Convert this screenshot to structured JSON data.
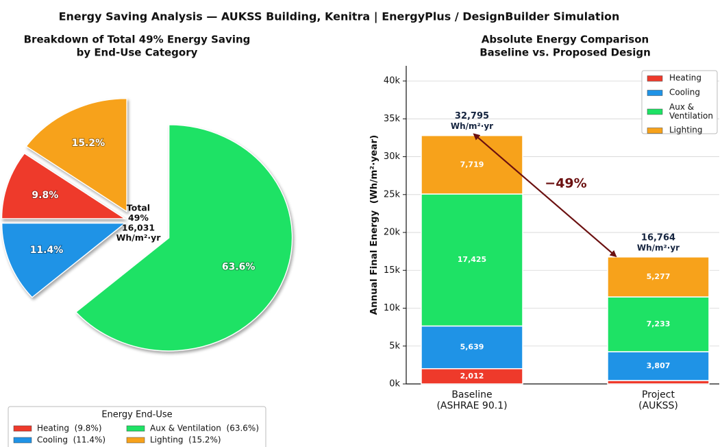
{
  "title": "Energy Saving Analysis — AUKSS Building, Kenitra  |  EnergyPlus / DesignBuilder Simulation",
  "chart_data": [
    {
      "type": "pie",
      "title": [
        "Breakdown of Total 49% Energy Saving",
        "by End-Use Category"
      ],
      "categories": [
        "Heating",
        "Cooling",
        "Aux & Ventilation",
        "Lighting"
      ],
      "values": [
        9.8,
        11.4,
        63.6,
        15.2
      ],
      "value_labels": [
        "9.8%",
        "11.4%",
        "63.6%",
        "15.2%"
      ],
      "colors": [
        "#ee3a2b",
        "#1f93e6",
        "#1ee265",
        "#f7a21b"
      ],
      "center_text": [
        "Total",
        "49%",
        "16,031",
        "Wh/m²·yr"
      ],
      "legend_title": "Energy End-Use",
      "legend_labels": [
        "Heating  (9.8%)",
        "Cooling  (11.4%)",
        "Aux & Ventilation  (63.6%)",
        "Lighting  (15.2%)"
      ],
      "legend": "lower left"
    },
    {
      "type": "stacked_bar",
      "title": [
        "Absolute Energy Comparison",
        "Baseline vs. Proposed Design"
      ],
      "categories": [
        [
          "Baseline",
          "(ASHRAE 90.1)"
        ],
        [
          "Project",
          "(AUKSS)"
        ]
      ],
      "ylabel": "Annual Final Energy  (Wh/m²·year)",
      "series": [
        {
          "name": "Heating",
          "color": "#ee3a2b",
          "values": [
            2012,
            447
          ],
          "value_labels": [
            "2,012",
            null
          ]
        },
        {
          "name": "Cooling",
          "color": "#1f93e6",
          "values": [
            5639,
            3807
          ],
          "value_labels": [
            "5,639",
            "3,807"
          ]
        },
        {
          "name": "Aux & Ventilation",
          "color": "#1ee265",
          "values": [
            17425,
            7233
          ],
          "value_labels": [
            "17,425",
            "7,233"
          ]
        },
        {
          "name": "Lighting",
          "color": "#f7a21b",
          "values": [
            7719,
            5277
          ],
          "value_labels": [
            "7,719",
            "5,277"
          ]
        }
      ],
      "totals": [
        32795,
        16764
      ],
      "total_labels": [
        "32,795",
        "16,764"
      ],
      "total_unit": "Wh/m²·yr",
      "annotation": "−49%",
      "ylim": [
        0,
        42000
      ],
      "yticks": [
        {
          "value": 0,
          "label": "0k"
        },
        {
          "value": 5000,
          "label": "5k"
        },
        {
          "value": 10000,
          "label": "10k"
        },
        {
          "value": 15000,
          "label": "15k"
        },
        {
          "value": 20000,
          "label": "20k"
        },
        {
          "value": 25000,
          "label": "25k"
        },
        {
          "value": 30000,
          "label": "30k"
        },
        {
          "value": 35000,
          "label": "35k"
        },
        {
          "value": 40000,
          "label": "40k"
        }
      ],
      "grid": true,
      "legend": "upper right"
    }
  ]
}
